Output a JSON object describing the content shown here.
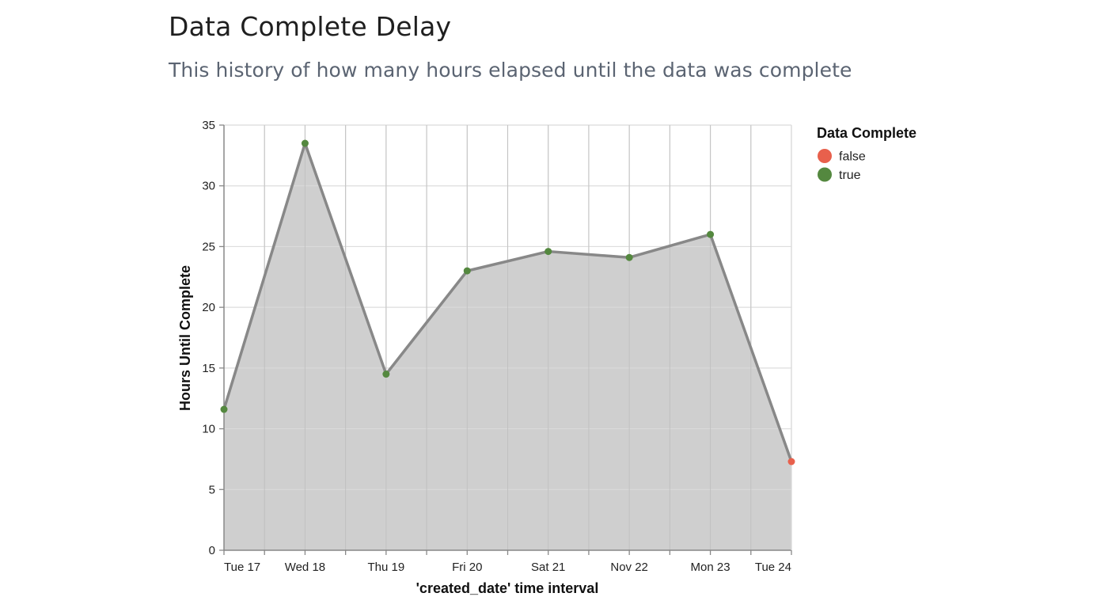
{
  "page": {
    "title": "Data Complete Delay",
    "subtitle": "This history of how many hours elapsed until the data was complete"
  },
  "chart_data": {
    "type": "area",
    "xlabel": "'created_date' time interval",
    "ylabel": "Hours Until Complete",
    "x_tick_labels": [
      "Tue 17",
      "Wed 18",
      "Thu 19",
      "Fri 20",
      "Sat 21",
      "Nov 22",
      "Mon 23",
      "Tue 24"
    ],
    "ylim": [
      0,
      35
    ],
    "y_ticks": [
      0,
      5,
      10,
      15,
      20,
      25,
      30,
      35
    ],
    "grid": true,
    "legend": {
      "title": "Data Complete",
      "placement": "right",
      "entries": [
        {
          "label": "false",
          "color": "#e8604c"
        },
        {
          "label": "true",
          "color": "#54883f"
        }
      ]
    },
    "points": [
      {
        "date": "2020-11-17",
        "y": 11.6,
        "complete": "true"
      },
      {
        "date": "2020-11-18",
        "y": 33.5,
        "complete": "true"
      },
      {
        "date": "2020-11-19",
        "y": 14.5,
        "complete": "true"
      },
      {
        "date": "2020-11-20",
        "y": 23.0,
        "complete": "true"
      },
      {
        "date": "2020-11-21",
        "y": 24.6,
        "complete": "true"
      },
      {
        "date": "2020-11-22",
        "y": 24.1,
        "complete": "true"
      },
      {
        "date": "2020-11-23",
        "y": 26.0,
        "complete": "true"
      },
      {
        "date": "2020-11-24",
        "y": 7.3,
        "complete": "false"
      }
    ],
    "colors": {
      "area_fill": "#cfcfcf",
      "line": "#888888",
      "grid": "#d9d9d9",
      "axis": "#888888"
    }
  }
}
